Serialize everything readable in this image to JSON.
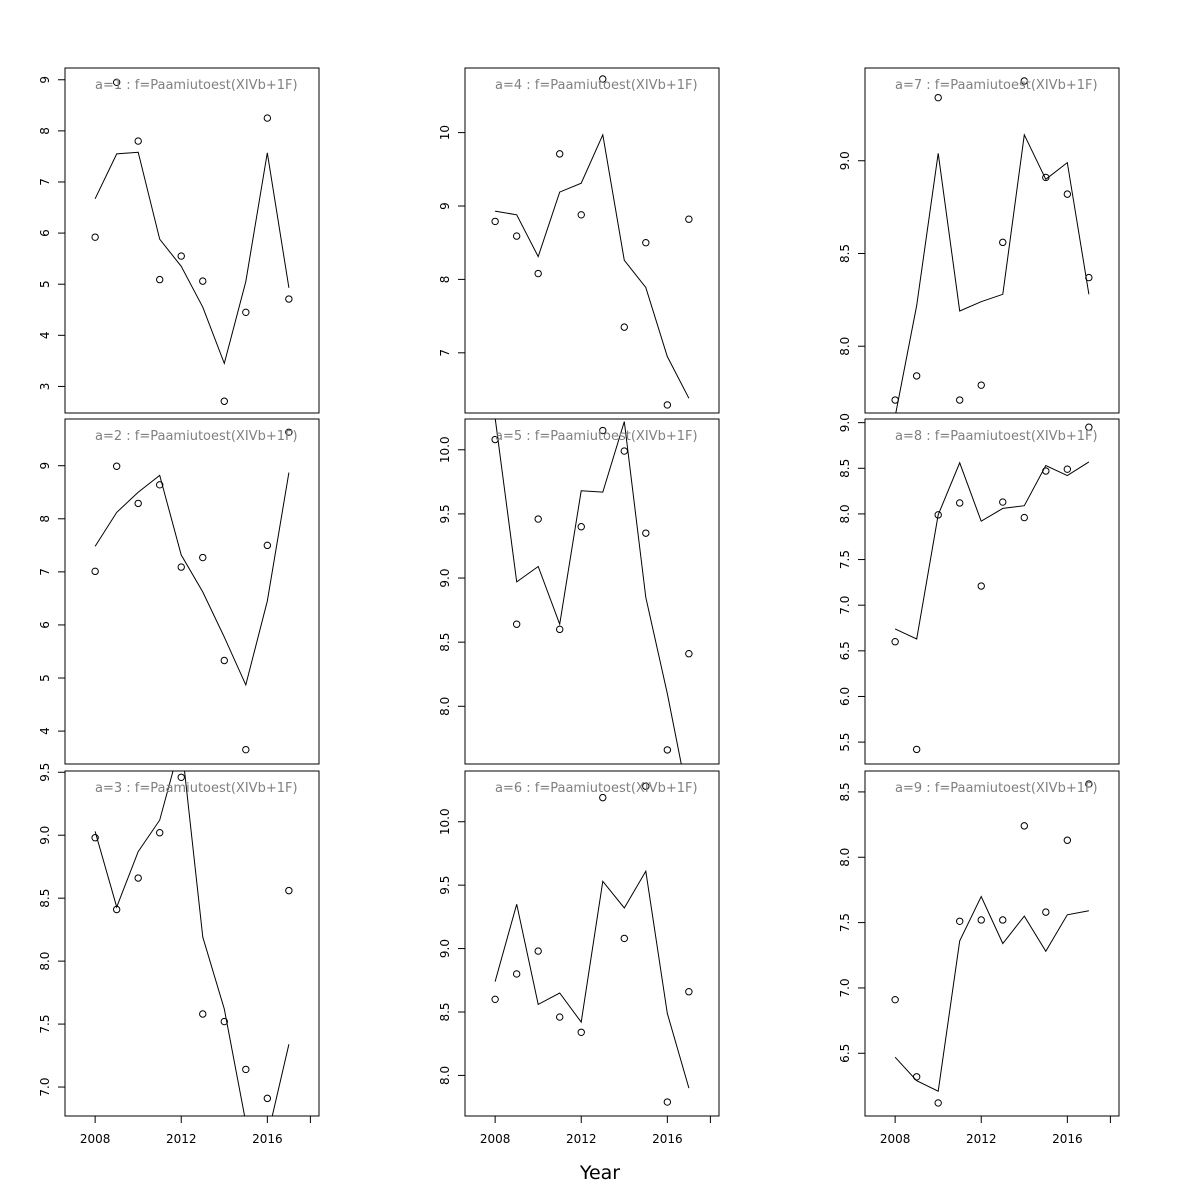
{
  "xlabel": "Year",
  "title_color": "#808080",
  "line_color": "#000000",
  "chart_data": [
    {
      "type": "line+scatter",
      "title": "a=1  :  f=Paamiutoest(XIVb+1F)",
      "x": [
        2008,
        2009,
        2010,
        2011,
        2012,
        2013,
        2014,
        2015,
        2016,
        2017
      ],
      "series": [
        {
          "kind": "line",
          "values": [
            6.67,
            7.55,
            7.58,
            5.88,
            5.35,
            4.55,
            3.45,
            5.05,
            7.57,
            4.93
          ]
        },
        {
          "kind": "points",
          "values": [
            5.92,
            8.95,
            7.8,
            5.09,
            5.55,
            5.06,
            2.71,
            4.45,
            8.25,
            4.71
          ]
        }
      ],
      "xlim": [
        2006.6,
        2018.4
      ],
      "ylim": [
        2.48,
        9.23
      ],
      "yticks": [
        3,
        4,
        5,
        6,
        7,
        8,
        9
      ]
    },
    {
      "type": "line+scatter",
      "title": "a=2  :  f=Paamiutoest(XIVb+1F)",
      "x": [
        2008,
        2009,
        2010,
        2011,
        2012,
        2013,
        2014,
        2015,
        2016,
        2017
      ],
      "series": [
        {
          "kind": "line",
          "values": [
            7.48,
            8.12,
            8.5,
            8.82,
            7.32,
            6.62,
            5.77,
            4.87,
            6.45,
            8.87
          ]
        },
        {
          "kind": "points",
          "values": [
            7.01,
            8.99,
            8.29,
            8.64,
            7.09,
            7.27,
            5.33,
            3.65,
            7.5,
            9.63
          ]
        }
      ],
      "xlim": [
        2006.6,
        2018.4
      ],
      "ylim": [
        3.38,
        9.88
      ],
      "yticks": [
        4,
        5,
        6,
        7,
        8,
        9
      ]
    },
    {
      "type": "line+scatter",
      "title": "a=3  :  f=Paamiutoest(XIVb+1F)",
      "x": [
        2008,
        2009,
        2010,
        2011,
        2012,
        2013,
        2014,
        2015,
        2016,
        2017
      ],
      "series": [
        {
          "kind": "line",
          "values": [
            9.03,
            8.43,
            8.87,
            9.12,
            9.75,
            8.19,
            7.62,
            6.72,
            6.6,
            7.34
          ]
        },
        {
          "kind": "points",
          "values": [
            8.98,
            8.41,
            8.66,
            9.02,
            9.46,
            7.58,
            7.52,
            7.14,
            6.91,
            8.56
          ]
        }
      ],
      "xlim": [
        2006.6,
        2018.4
      ],
      "ylim": [
        6.77,
        9.51
      ],
      "yticks": [
        7.0,
        7.5,
        8.0,
        8.5,
        9.0,
        9.5
      ]
    },
    {
      "type": "line+scatter",
      "title": "a=4  :  f=Paamiutoest(XIVb+1F)",
      "x": [
        2008,
        2009,
        2010,
        2011,
        2012,
        2013,
        2014,
        2015,
        2016,
        2017
      ],
      "series": [
        {
          "kind": "line",
          "values": [
            8.93,
            8.88,
            8.31,
            9.19,
            9.31,
            9.97,
            8.26,
            7.89,
            6.95,
            6.38
          ]
        },
        {
          "kind": "points",
          "values": [
            8.79,
            8.59,
            8.08,
            9.71,
            8.88,
            10.73,
            7.35,
            8.5,
            6.29,
            8.82
          ]
        }
      ],
      "xlim": [
        2006.6,
        2018.4
      ],
      "ylim": [
        6.18,
        10.88
      ],
      "yticks": [
        7,
        8,
        9,
        10
      ]
    },
    {
      "type": "line+scatter",
      "title": "a=5  :  f=Paamiutoest(XIVb+1F)",
      "x": [
        2008,
        2009,
        2010,
        2011,
        2012,
        2013,
        2014,
        2015,
        2016,
        2017
      ],
      "series": [
        {
          "kind": "line",
          "values": [
            10.25,
            8.97,
            9.09,
            8.64,
            9.68,
            9.67,
            10.22,
            8.85,
            8.1,
            7.25
          ]
        },
        {
          "kind": "points",
          "values": [
            10.08,
            8.64,
            9.46,
            8.6,
            9.4,
            10.15,
            9.99,
            9.35,
            7.66,
            8.41
          ]
        }
      ],
      "xlim": [
        2006.6,
        2018.4
      ],
      "ylim": [
        7.55,
        10.24
      ],
      "yticks": [
        8.0,
        8.5,
        9.0,
        9.5,
        10.0
      ]
    },
    {
      "type": "line+scatter",
      "title": "a=6  :  f=Paamiutoest(XIVb+1F)",
      "x": [
        2008,
        2009,
        2010,
        2011,
        2012,
        2013,
        2014,
        2015,
        2016,
        2017
      ],
      "series": [
        {
          "kind": "line",
          "values": [
            8.74,
            9.35,
            8.56,
            8.65,
            8.42,
            9.53,
            9.32,
            9.61,
            8.49,
            7.9
          ]
        },
        {
          "kind": "points",
          "values": [
            8.6,
            8.8,
            8.98,
            8.46,
            8.34,
            10.19,
            9.08,
            10.28,
            7.79,
            8.66
          ]
        }
      ],
      "xlim": [
        2006.6,
        2018.4
      ],
      "ylim": [
        7.68,
        10.4
      ],
      "yticks": [
        8.0,
        8.5,
        9.0,
        9.5,
        10.0
      ]
    },
    {
      "type": "line+scatter",
      "title": "a=7  :  f=Paamiutoest(XIVb+1F)",
      "x": [
        2008,
        2009,
        2010,
        2011,
        2012,
        2013,
        2014,
        2015,
        2016,
        2017
      ],
      "series": [
        {
          "kind": "line",
          "values": [
            7.62,
            8.22,
            9.04,
            8.19,
            8.24,
            8.28,
            9.14,
            8.9,
            8.99,
            8.28
          ]
        },
        {
          "kind": "points",
          "values": [
            7.71,
            7.84,
            9.34,
            7.71,
            7.79,
            8.56,
            9.43,
            8.91,
            8.82,
            8.37
          ]
        }
      ],
      "xlim": [
        2006.6,
        2018.4
      ],
      "ylim": [
        7.64,
        9.5
      ],
      "yticks": [
        8.0,
        8.5,
        9.0
      ]
    },
    {
      "type": "line+scatter",
      "title": "a=8  :  f=Paamiutoest(XIVb+1F)",
      "x": [
        2008,
        2009,
        2010,
        2011,
        2012,
        2013,
        2014,
        2015,
        2016,
        2017
      ],
      "series": [
        {
          "kind": "line",
          "values": [
            6.74,
            6.63,
            7.99,
            8.56,
            7.92,
            8.06,
            8.09,
            8.53,
            8.42,
            8.57
          ]
        },
        {
          "kind": "points",
          "values": [
            6.6,
            5.42,
            7.99,
            8.12,
            7.21,
            8.13,
            7.96,
            8.47,
            8.49,
            8.95
          ]
        }
      ],
      "xlim": [
        2006.6,
        2018.4
      ],
      "ylim": [
        5.26,
        9.04
      ],
      "yticks": [
        5.5,
        6.0,
        6.5,
        7.0,
        7.5,
        8.0,
        8.5,
        9.0
      ]
    },
    {
      "type": "line+scatter",
      "title": "a=9  :  f=Paamiutoest(XIVb+1F)",
      "x": [
        2008,
        2009,
        2010,
        2011,
        2012,
        2013,
        2014,
        2015,
        2016,
        2017
      ],
      "series": [
        {
          "kind": "line",
          "values": [
            6.47,
            6.29,
            6.21,
            7.36,
            7.7,
            7.34,
            7.55,
            7.28,
            7.56,
            7.59
          ]
        },
        {
          "kind": "points",
          "values": [
            6.91,
            6.32,
            6.12,
            7.51,
            7.52,
            7.52,
            8.24,
            7.58,
            8.13,
            8.56
          ]
        }
      ],
      "xlim": [
        2006.6,
        2018.4
      ],
      "ylim": [
        6.02,
        8.66
      ],
      "yticks": [
        6.5,
        7.0,
        7.5,
        8.0,
        8.5
      ]
    }
  ],
  "xticks": [
    2008,
    2012,
    2016
  ]
}
